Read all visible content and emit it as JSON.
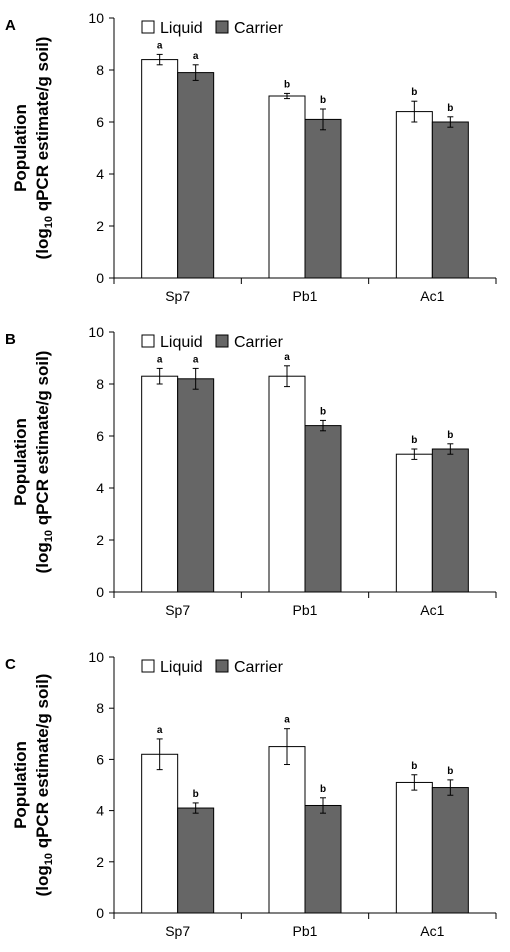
{
  "chart_data": [
    {
      "panel": "A",
      "type": "bar",
      "categories": [
        "Sp7",
        "Pb1",
        "Ac1"
      ],
      "series": [
        {
          "name": "Liquid",
          "values": [
            8.4,
            7.0,
            6.4
          ],
          "errors": [
            0.2,
            0.1,
            0.4
          ],
          "letters": [
            "a",
            "b",
            "b"
          ]
        },
        {
          "name": "Carrier",
          "values": [
            7.9,
            6.1,
            6.0
          ],
          "errors": [
            0.3,
            0.4,
            0.2
          ],
          "letters": [
            "a",
            "b",
            "b"
          ]
        }
      ],
      "ylim": [
        0,
        10
      ],
      "yticks": [
        0,
        2,
        4,
        6,
        8,
        10
      ],
      "ylabel_line1": "Population",
      "ylabel_line2_pre": "(log",
      "ylabel_line2_sub": "10",
      "ylabel_line2_post": " qPCR estimate/g soil)",
      "xlabel": "",
      "legend": "top-left",
      "grid": false
    },
    {
      "panel": "B",
      "type": "bar",
      "categories": [
        "Sp7",
        "Pb1",
        "Ac1"
      ],
      "series": [
        {
          "name": "Liquid",
          "values": [
            8.3,
            8.3,
            5.3
          ],
          "errors": [
            0.3,
            0.4,
            0.2
          ],
          "letters": [
            "a",
            "a",
            "b"
          ]
        },
        {
          "name": "Carrier",
          "values": [
            8.2,
            6.4,
            5.5
          ],
          "errors": [
            0.4,
            0.2,
            0.2
          ],
          "letters": [
            "a",
            "b",
            "b"
          ]
        }
      ],
      "ylim": [
        0,
        10
      ],
      "yticks": [
        0,
        2,
        4,
        6,
        8,
        10
      ],
      "ylabel_line1": "Population",
      "ylabel_line2_pre": "(log",
      "ylabel_line2_sub": "10",
      "ylabel_line2_post": " qPCR estimate/g soil)",
      "xlabel": "",
      "legend": "top-left",
      "grid": false
    },
    {
      "panel": "C",
      "type": "bar",
      "categories": [
        "Sp7",
        "Pb1",
        "Ac1"
      ],
      "series": [
        {
          "name": "Liquid",
          "values": [
            6.2,
            6.5,
            5.1
          ],
          "errors": [
            0.6,
            0.7,
            0.3
          ],
          "letters": [
            "a",
            "a",
            "b"
          ]
        },
        {
          "name": "Carrier",
          "values": [
            4.1,
            4.2,
            4.9
          ],
          "errors": [
            0.2,
            0.3,
            0.3
          ],
          "letters": [
            "b",
            "b",
            "b"
          ]
        }
      ],
      "ylim": [
        0,
        10
      ],
      "yticks": [
        0,
        2,
        4,
        6,
        8,
        10
      ],
      "ylabel_line1": "Population",
      "ylabel_line2_pre": "(log",
      "ylabel_line2_sub": "10",
      "ylabel_line2_post": " qPCR estimate/g soil)",
      "xlabel": "",
      "legend": "top-left",
      "grid": false
    }
  ],
  "colors": {
    "liquid_fill": "#ffffff",
    "carrier_fill": "#666666",
    "bar_stroke": "#000000"
  }
}
